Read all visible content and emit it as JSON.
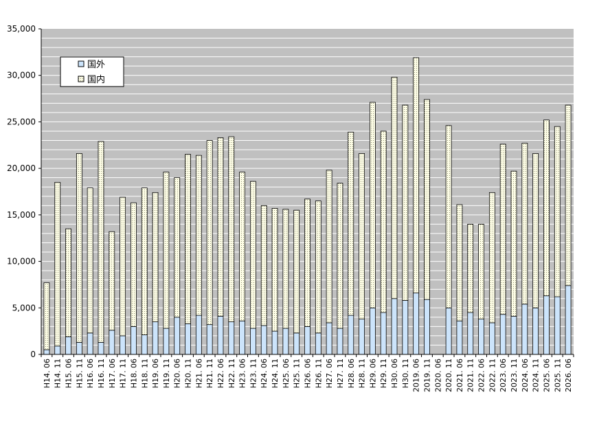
{
  "chart_data": {
    "type": "bar",
    "stacked": true,
    "categories": [
      "H14. 06",
      "H14. 11",
      "H15. 06",
      "H15. 11",
      "H16. 06",
      "H16. 11",
      "H17. 06",
      "H17. 11",
      "H18. 06",
      "H18. 11",
      "H19. 06",
      "H19. 11",
      "H20. 06",
      "H20. 11",
      "H21. 06",
      "H21. 11",
      "H22. 06",
      "H22. 11",
      "H23. 06",
      "H23. 11",
      "H24. 06",
      "H24. 11",
      "H25. 06",
      "H25. 11",
      "H26. 06",
      "H26. 11",
      "H27. 06",
      "H27. 11",
      "H28. 06",
      "H28. 11",
      "H29. 06",
      "H29. 11",
      "H30. 06",
      "H30. 11",
      "2019. 06",
      "2019. 11",
      "2020. 06",
      "2020. 11",
      "2021. 06",
      "2021. 11",
      "2022. 06",
      "2022. 11",
      "2023. 06",
      "2023. 11",
      "2024. 06",
      "2024. 11",
      "2025. 06",
      "2025. 11",
      "2026. 06"
    ],
    "series": [
      {
        "name": "国外",
        "color": "#cce4fb",
        "values": [
          500,
          900,
          1900,
          1300,
          2300,
          1300,
          2600,
          2000,
          3000,
          2100,
          3500,
          2800,
          4000,
          3300,
          4200,
          3200,
          4100,
          3500,
          3600,
          2800,
          3100,
          2500,
          2800,
          2300,
          3000,
          2300,
          3400,
          2800,
          4200,
          3800,
          5000,
          4500,
          6000,
          5800,
          6600,
          5900,
          null,
          5000,
          3600,
          4500,
          3800,
          3400,
          4300,
          4100,
          5400,
          5000,
          6300,
          6200,
          7400
        ]
      },
      {
        "name": "国内",
        "color": "#fdfde6",
        "values": [
          7200,
          17600,
          11600,
          20300,
          15600,
          21600,
          10600,
          14900,
          13300,
          15800,
          13900,
          16800,
          15000,
          18200,
          17200,
          19800,
          19200,
          19900,
          16000,
          15800,
          12900,
          13200,
          12800,
          13200,
          13700,
          14200,
          16400,
          15600,
          19700,
          17800,
          22100,
          19500,
          23800,
          21000,
          25300,
          21500,
          null,
          19600,
          12500,
          9500,
          10200,
          14000,
          18300,
          15600,
          17300,
          16600,
          18900,
          18300,
          19400
        ]
      }
    ],
    "yticks": [
      "0",
      "5,000",
      "10,000",
      "15,000",
      "20,000",
      "25,000",
      "30,000",
      "35,000"
    ],
    "ylim": [
      0,
      35000
    ],
    "grid": true,
    "legend_position": "top-left",
    "title": "",
    "xlabel": "",
    "ylabel": ""
  }
}
